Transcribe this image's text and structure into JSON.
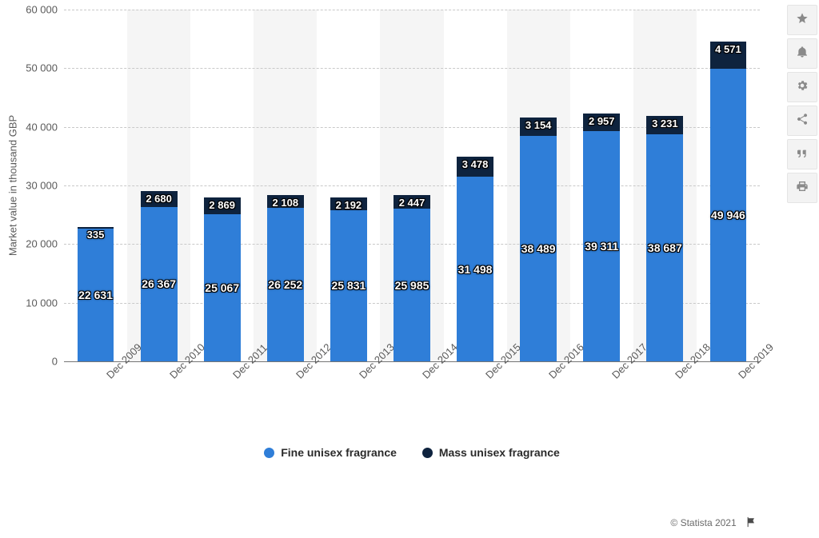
{
  "chart": {
    "type": "stacked-bar",
    "y_axis_title": "Market value in thousand GBP",
    "ylim_min": 0,
    "ylim_max": 60000,
    "ytick_step": 10000,
    "yticks": [
      "0",
      "10 000",
      "20 000",
      "30 000",
      "40 000",
      "50 000",
      "60 000"
    ],
    "categories": [
      "Dec 2009",
      "Dec 2010",
      "Dec 2011",
      "Dec 2012",
      "Dec 2013",
      "Dec 2014",
      "Dec 2015",
      "Dec 2016",
      "Dec 2017",
      "Dec 2018",
      "Dec 2019"
    ],
    "series": [
      {
        "name": "Fine unisex fragrance",
        "color": "#2f7ed8",
        "values": [
          22631,
          26367,
          25067,
          26252,
          25831,
          25985,
          31498,
          38489,
          39311,
          38687,
          49946
        ],
        "labels": [
          "22 631",
          "26 367",
          "25 067",
          "26 252",
          "25 831",
          "25 985",
          "31 498",
          "38 489",
          "39 311",
          "38 687",
          "49 946"
        ]
      },
      {
        "name": "Mass unisex fragrance",
        "color": "#0e233e",
        "values": [
          335,
          2680,
          2869,
          2108,
          2192,
          2447,
          3478,
          3154,
          2957,
          3231,
          4571
        ],
        "labels": [
          "335",
          "2 680",
          "2 869",
          "2 108",
          "2 192",
          "2 447",
          "3 478",
          "3 154",
          "2 957",
          "3 231",
          "4 571"
        ]
      }
    ],
    "grid_color": "#c9c9c9",
    "alt_band_color": "#f5f5f5",
    "background_color": "#ffffff",
    "bar_width_ratio": 0.58,
    "label_fontsize": 13,
    "axis_font_color": "#5a5a5a"
  },
  "legend": {
    "items": [
      {
        "label": "Fine unisex fragrance",
        "color": "#2f7ed8"
      },
      {
        "label": "Mass unisex fragrance",
        "color": "#0e233e"
      }
    ]
  },
  "attribution": "© Statista 2021",
  "toolbar": {
    "items": [
      {
        "name": "favorite",
        "title": "Favorite"
      },
      {
        "name": "notify",
        "title": "Notifications"
      },
      {
        "name": "settings",
        "title": "Settings"
      },
      {
        "name": "share",
        "title": "Share"
      },
      {
        "name": "cite",
        "title": "Citation"
      },
      {
        "name": "print",
        "title": "Print"
      }
    ]
  }
}
